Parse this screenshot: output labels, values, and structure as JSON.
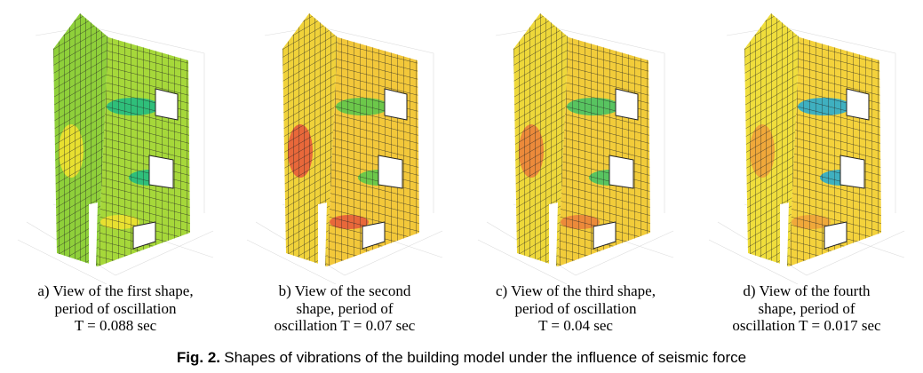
{
  "figure": {
    "panels": [
      {
        "caption": [
          "a) View of the first shape,",
          "period of oscillation",
          "T = 0.088 sec"
        ]
      },
      {
        "caption": [
          "b) View of the second",
          "shape, period of",
          "oscillation T = 0.07 sec"
        ]
      },
      {
        "caption": [
          "c) View of the third shape,",
          "period of oscillation",
          "T = 0.04 sec"
        ]
      },
      {
        "caption": [
          "d) View of the fourth",
          "shape, period of",
          "oscillation T = 0.017 sec"
        ]
      }
    ],
    "label": "Fig. 2.",
    "caption": "Shapes of vibrations of the building model under the influence of seismic force"
  }
}
